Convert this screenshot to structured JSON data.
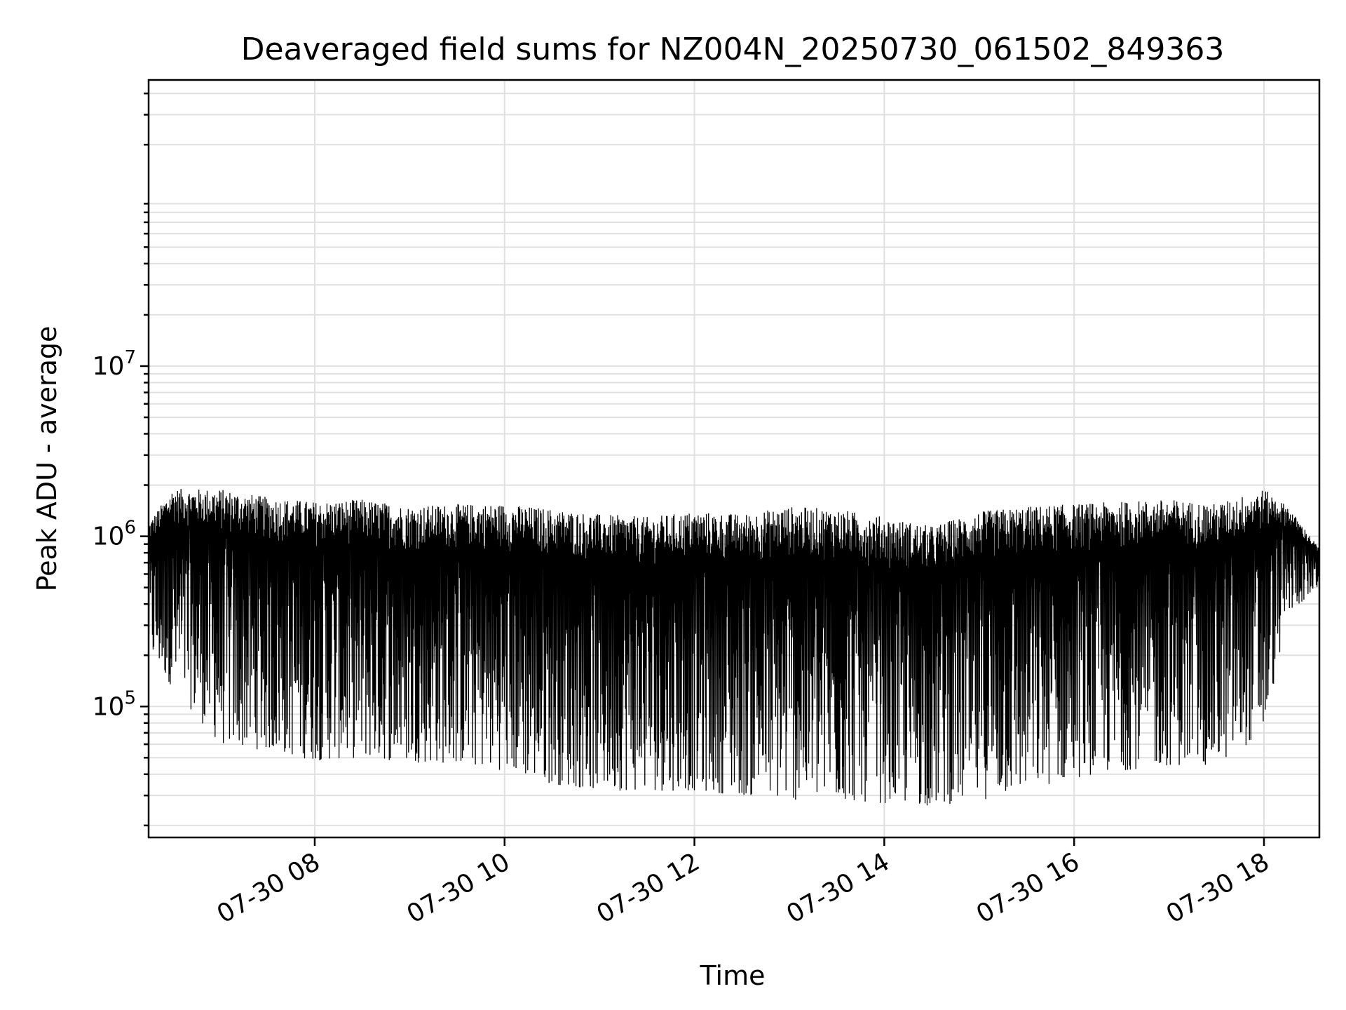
{
  "chart_data": {
    "type": "line",
    "title": "Deaveraged field sums for NZ004N_20250730_061502_849363",
    "xlabel": "Time",
    "ylabel": "Peak ADU - average",
    "yscale": "log",
    "ylim": [
      17000,
      480000000
    ],
    "xlim": [
      "2025-07-30 06:15",
      "2025-07-30 18:35"
    ],
    "grid": "on (major and minor)",
    "x_ticks": [
      {
        "value": "2025-07-30 08:00",
        "label": "07-30 08"
      },
      {
        "value": "2025-07-30 10:00",
        "label": "07-30 10"
      },
      {
        "value": "2025-07-30 12:00",
        "label": "07-30 12"
      },
      {
        "value": "2025-07-30 14:00",
        "label": "07-30 14"
      },
      {
        "value": "2025-07-30 16:00",
        "label": "07-30 16"
      },
      {
        "value": "2025-07-30 18:00",
        "label": "07-30 18"
      }
    ],
    "y_ticks": [
      {
        "value": 100000,
        "base": "10",
        "exp": "5"
      },
      {
        "value": 1000000,
        "base": "10",
        "exp": "6"
      },
      {
        "value": 10000000,
        "base": "10",
        "exp": "7"
      }
    ],
    "series": [
      {
        "color": "#000000",
        "envelope": [
          {
            "x": "2025-07-30 06:15",
            "upper": 1200000,
            "lower": 200000
          },
          {
            "x": "2025-07-30 06:30",
            "upper": 1900000,
            "lower": 130000
          },
          {
            "x": "2025-07-30 07:00",
            "upper": 1900000,
            "lower": 60000
          },
          {
            "x": "2025-07-30 07:30",
            "upper": 1700000,
            "lower": 55000
          },
          {
            "x": "2025-07-30 08:00",
            "upper": 1600000,
            "lower": 48000
          },
          {
            "x": "2025-07-30 08:30",
            "upper": 1650000,
            "lower": 50000
          },
          {
            "x": "2025-07-30 09:00",
            "upper": 1500000,
            "lower": 47000
          },
          {
            "x": "2025-07-30 09:30",
            "upper": 1550000,
            "lower": 46000
          },
          {
            "x": "2025-07-30 10:00",
            "upper": 1550000,
            "lower": 42000
          },
          {
            "x": "2025-07-30 10:30",
            "upper": 1450000,
            "lower": 35000
          },
          {
            "x": "2025-07-30 11:00",
            "upper": 1350000,
            "lower": 32000
          },
          {
            "x": "2025-07-30 11:30",
            "upper": 1300000,
            "lower": 32000
          },
          {
            "x": "2025-07-30 12:00",
            "upper": 1400000,
            "lower": 32000
          },
          {
            "x": "2025-07-30 12:30",
            "upper": 1350000,
            "lower": 30000
          },
          {
            "x": "2025-07-30 13:00",
            "upper": 1500000,
            "lower": 28000
          },
          {
            "x": "2025-07-30 13:30",
            "upper": 1450000,
            "lower": 28000
          },
          {
            "x": "2025-07-30 14:00",
            "upper": 1300000,
            "lower": 27000
          },
          {
            "x": "2025-07-30 14:30",
            "upper": 1150000,
            "lower": 26000
          },
          {
            "x": "2025-07-30 15:00",
            "upper": 1400000,
            "lower": 28000
          },
          {
            "x": "2025-07-30 15:30",
            "upper": 1500000,
            "lower": 32000
          },
          {
            "x": "2025-07-30 16:00",
            "upper": 1550000,
            "lower": 38000
          },
          {
            "x": "2025-07-30 16:30",
            "upper": 1600000,
            "lower": 42000
          },
          {
            "x": "2025-07-30 17:00",
            "upper": 1650000,
            "lower": 45000
          },
          {
            "x": "2025-07-30 17:30",
            "upper": 1550000,
            "lower": 45000
          },
          {
            "x": "2025-07-30 18:00",
            "upper": 1900000,
            "lower": 70000
          },
          {
            "x": "2025-07-30 18:15",
            "upper": 1500000,
            "lower": 350000
          },
          {
            "x": "2025-07-30 18:35",
            "upper": 850000,
            "lower": 500000
          }
        ]
      }
    ]
  }
}
